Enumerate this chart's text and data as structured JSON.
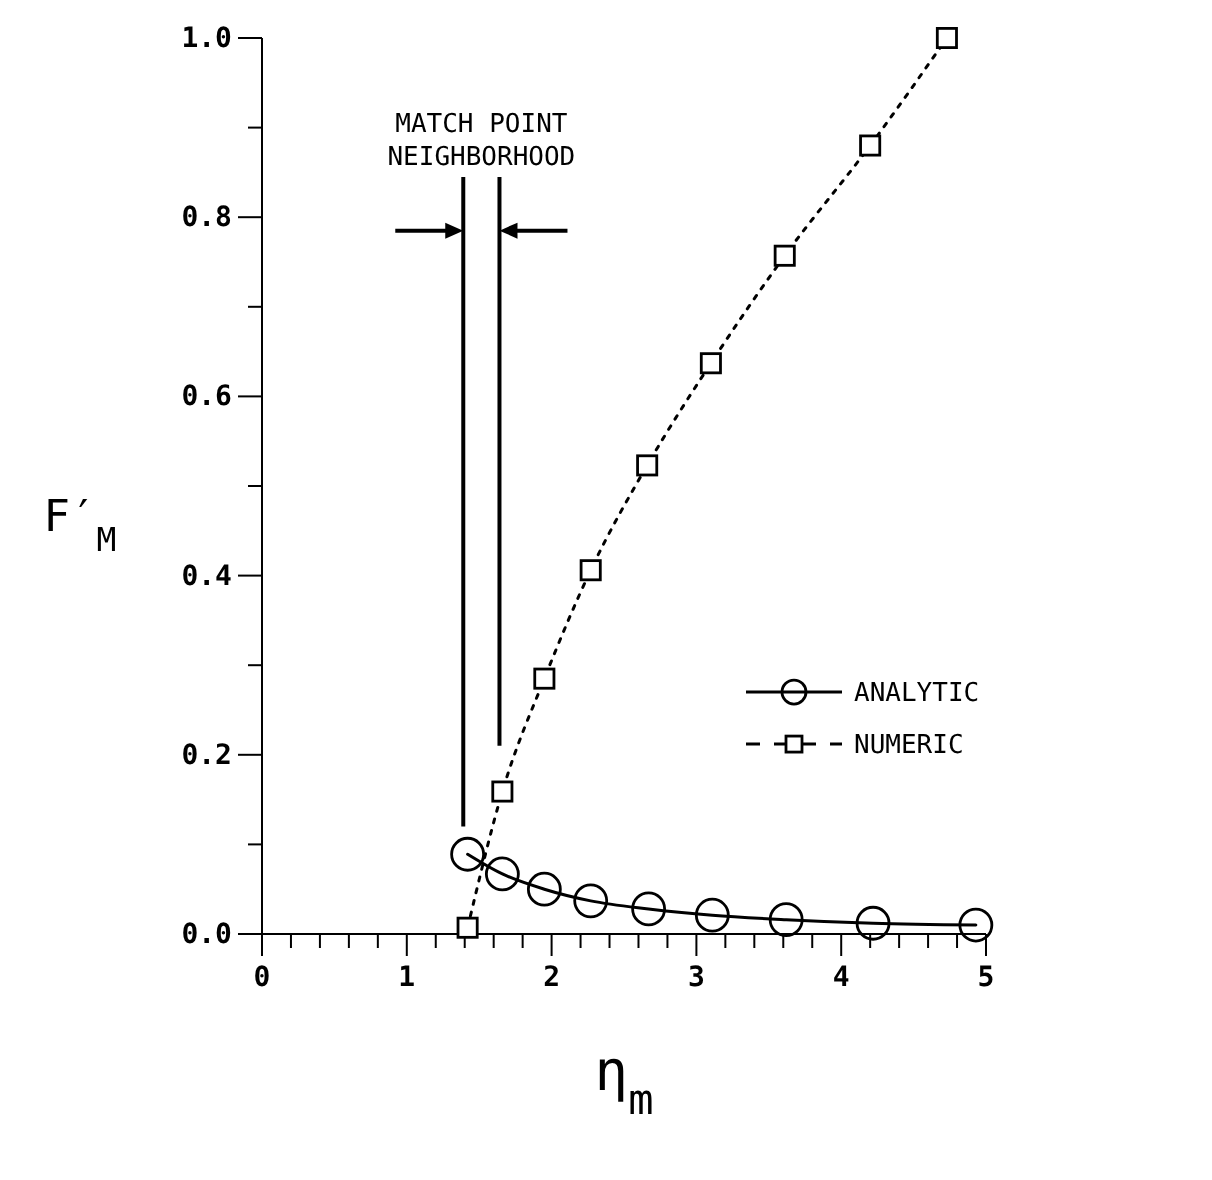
{
  "chart_data": {
    "type": "line",
    "xlabel": "η$_{m}$",
    "ylabel": "F′$_{M}$",
    "xlim": [
      0,
      5
    ],
    "ylim": [
      0,
      1
    ],
    "xticks": [
      0,
      {
        "value": 0.2,
        "label": null
      },
      {
        "value": 0.4,
        "label": null
      },
      {
        "value": 0.6,
        "label": null
      },
      {
        "value": 0.8,
        "label": null
      },
      1,
      {
        "value": 1.2,
        "label": null
      },
      {
        "value": 1.4,
        "label": null
      },
      {
        "value": 1.6,
        "label": null
      },
      {
        "value": 1.8,
        "label": null
      },
      2,
      {
        "value": 2.2,
        "label": null
      },
      {
        "value": 2.4,
        "label": null
      },
      {
        "value": 2.6,
        "label": null
      },
      {
        "value": 2.8,
        "label": null
      },
      3,
      {
        "value": 3.2,
        "label": null
      },
      {
        "value": 3.4,
        "label": null
      },
      {
        "value": 3.6,
        "label": null
      },
      {
        "value": 3.8,
        "label": null
      },
      4,
      {
        "value": 4.2,
        "label": null
      },
      {
        "value": 4.4,
        "label": null
      },
      {
        "value": 4.6,
        "label": null
      },
      {
        "value": 4.8,
        "label": null
      },
      5
    ],
    "yticks": [
      {
        "value": 0,
        "label": "0.0"
      },
      {
        "value": 0.1,
        "label": null
      },
      {
        "value": 0.2,
        "label": "0.2"
      },
      {
        "value": 0.3,
        "label": null
      },
      {
        "value": 0.4,
        "label": "0.4"
      },
      {
        "value": 0.5,
        "label": null
      },
      {
        "value": 0.6,
        "label": "0.6"
      },
      {
        "value": 0.7,
        "label": null
      },
      {
        "value": 0.8,
        "label": "0.8"
      },
      {
        "value": 0.9,
        "label": null
      },
      {
        "value": 1,
        "label": "1.0"
      }
    ],
    "series": [
      {
        "name": "ANALYTIC",
        "color": "#000000",
        "marker": "circle",
        "line_style": "solid",
        "x": [
          1.42,
          1.66,
          1.95,
          2.27,
          2.67,
          3.11,
          3.62,
          4.22,
          4.93
        ],
        "values": [
          0.089,
          0.067,
          0.05,
          0.037,
          0.028,
          0.021,
          0.016,
          0.012,
          0.01
        ]
      },
      {
        "name": "NUMERIC",
        "color": "#000000",
        "marker": "square",
        "line_style": "dotted",
        "x": [
          1.42,
          1.66,
          1.95,
          2.27,
          2.66,
          3.1,
          3.61,
          4.2,
          4.73
        ],
        "values": [
          0.007,
          0.159,
          0.285,
          0.406,
          0.523,
          0.637,
          0.757,
          0.88,
          1.0
        ]
      }
    ],
    "ref_lines": [
      {
        "axis": "x",
        "value": 1.39,
        "label": "MATCH POINT NEIGHBORHOOD"
      },
      {
        "axis": "x",
        "value": 1.64,
        "label": null
      }
    ],
    "legend": "right",
    "grid": false
  }
}
